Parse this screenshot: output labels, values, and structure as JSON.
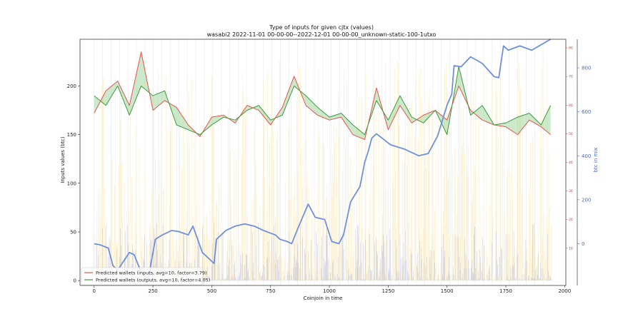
{
  "chart_data": {
    "type": "line",
    "title": "Type of inputs for given cjtx (values)",
    "subtitle": "wasabi2 2022-11-01 00-00-00--2022-12-01 00-00-00_unknown-static-100-1utxo",
    "xlabel": "Coinjoin in time",
    "ylabel": "Inputs values (btc)",
    "y2label": "btc in mix",
    "xlim": [
      -60,
      2005
    ],
    "ylim": [
      -5,
      248
    ],
    "y_right1_lim": [
      -3,
      83
    ],
    "y_right2_lim": [
      -190,
      930
    ],
    "x_ticks": [
      "0",
      "250",
      "500",
      "750",
      "1000",
      "1250",
      "1500",
      "1750",
      "2000"
    ],
    "y_ticks": [
      "0",
      "50",
      "100",
      "150",
      "200"
    ],
    "y_right1_ticks": [
      "10",
      "20",
      "30",
      "40",
      "50",
      "60",
      "70",
      "80"
    ],
    "y_right2_ticks": [
      "0",
      "200",
      "400",
      "600",
      "800"
    ],
    "legend": {
      "placement": "lower-left",
      "entries": [
        {
          "label": "Predicted wallets (inputs, avg=10, factor=3.79)",
          "color": "#e8534f"
        },
        {
          "label": "Predicted wallets (outputs, avg=10, factor=4.05)",
          "color": "#3c9a3c"
        }
      ]
    },
    "series": [
      {
        "key": "inputs",
        "color": "#e8534f",
        "axis": "left",
        "x": [
          0,
          50,
          100,
          150,
          200,
          250,
          300,
          350,
          400,
          450,
          500,
          550,
          600,
          650,
          700,
          750,
          800,
          850,
          900,
          950,
          1000,
          1050,
          1100,
          1150,
          1200,
          1250,
          1300,
          1350,
          1400,
          1450,
          1500,
          1550,
          1600,
          1650,
          1700,
          1750,
          1800,
          1850,
          1900,
          1940
        ],
        "values": [
          172,
          195,
          205,
          180,
          235,
          175,
          185,
          178,
          160,
          148,
          168,
          170,
          162,
          180,
          175,
          160,
          178,
          210,
          180,
          170,
          165,
          168,
          150,
          145,
          198,
          155,
          180,
          162,
          170,
          175,
          165,
          200,
          175,
          165,
          160,
          158,
          150,
          165,
          158,
          150
        ]
      },
      {
        "key": "outputs",
        "color": "#3c9a3c",
        "axis": "left",
        "x": [
          0,
          50,
          100,
          150,
          200,
          250,
          300,
          350,
          400,
          450,
          500,
          550,
          600,
          650,
          700,
          750,
          800,
          850,
          900,
          950,
          1000,
          1050,
          1100,
          1150,
          1200,
          1250,
          1300,
          1350,
          1400,
          1450,
          1500,
          1550,
          1600,
          1650,
          1700,
          1750,
          1800,
          1850,
          1900,
          1940
        ],
        "values": [
          190,
          180,
          200,
          170,
          200,
          190,
          195,
          160,
          155,
          150,
          160,
          168,
          165,
          175,
          180,
          165,
          170,
          200,
          190,
          178,
          168,
          172,
          160,
          150,
          185,
          165,
          190,
          168,
          162,
          175,
          150,
          220,
          170,
          180,
          160,
          162,
          168,
          172,
          160,
          180
        ]
      },
      {
        "key": "btc_in_mix",
        "color": "#6f8fe0",
        "axis": "right2",
        "x": [
          0,
          25,
          60,
          80,
          100,
          150,
          170,
          200,
          230,
          260,
          290,
          330,
          360,
          400,
          420,
          460,
          510,
          520,
          560,
          600,
          640,
          680,
          720,
          770,
          790,
          820,
          840,
          870,
          910,
          940,
          980,
          1010,
          1040,
          1060,
          1090,
          1130,
          1150,
          1165,
          1180,
          1200,
          1260,
          1320,
          1380,
          1420,
          1460,
          1480,
          1500,
          1520,
          1530,
          1560,
          1600,
          1650,
          1700,
          1720,
          1740,
          1760,
          1810,
          1860,
          1940
        ],
        "values": [
          0,
          -5,
          -20,
          -100,
          -120,
          -40,
          -50,
          -130,
          -160,
          20,
          40,
          60,
          55,
          40,
          80,
          -40,
          -90,
          20,
          60,
          80,
          90,
          80,
          60,
          40,
          20,
          10,
          0,
          80,
          180,
          120,
          110,
          10,
          0,
          40,
          190,
          260,
          370,
          420,
          480,
          500,
          450,
          430,
          400,
          410,
          490,
          560,
          630,
          680,
          810,
          805,
          850,
          820,
          760,
          755,
          900,
          880,
          900,
          880,
          930
        ]
      }
    ]
  }
}
